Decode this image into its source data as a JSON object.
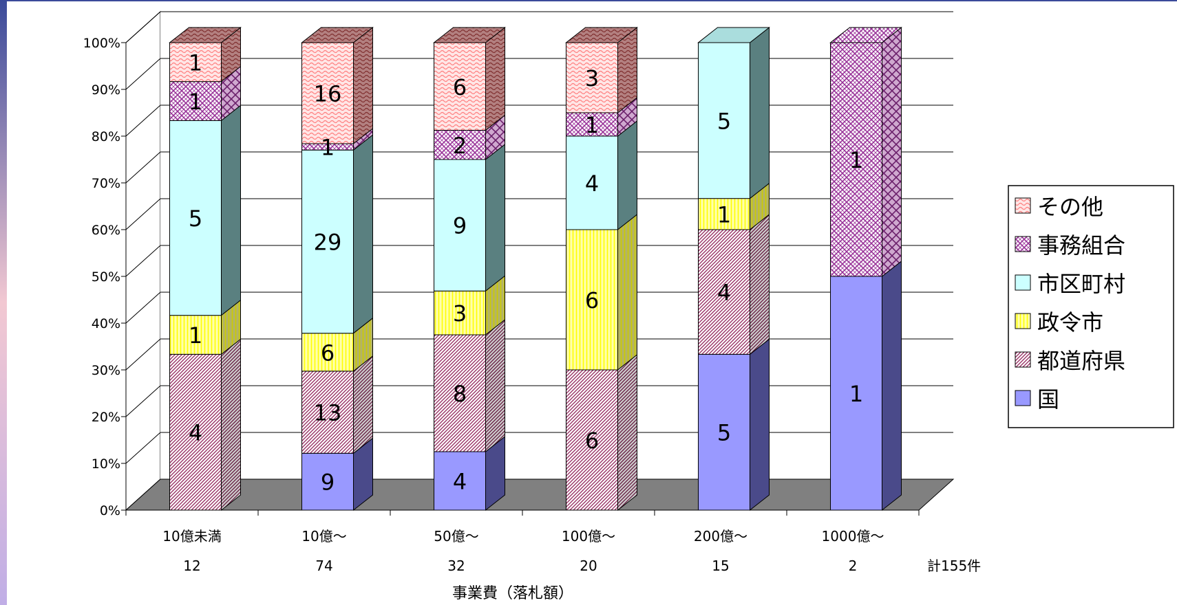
{
  "chart_data": {
    "type": "bar",
    "stacked": true,
    "percent": true,
    "three_d": true,
    "categories": [
      "10億未満",
      "10億～",
      "50億～",
      "100億～",
      "200億～",
      "1000億～"
    ],
    "category_counts": [
      "12",
      "74",
      "32",
      "20",
      "15",
      "2"
    ],
    "total_label": "計155件",
    "xlabel": "事業費（落札額）",
    "ylabel": "",
    "ylim": [
      0,
      100
    ],
    "y_ticks": [
      "0%",
      "10%",
      "20%",
      "30%",
      "40%",
      "50%",
      "60%",
      "70%",
      "80%",
      "90%",
      "100%"
    ],
    "grid": true,
    "legend_position": "right",
    "series": [
      {
        "name": "国",
        "values": [
          0,
          9,
          4,
          0,
          5,
          1
        ],
        "color": "#9999ff",
        "pattern": "solid"
      },
      {
        "name": "都道府県",
        "values": [
          4,
          13,
          8,
          6,
          4,
          0
        ],
        "color": "#993366",
        "pattern": "diag"
      },
      {
        "name": "政令市",
        "values": [
          1,
          6,
          3,
          6,
          1,
          0
        ],
        "color": "#ffff99",
        "pattern": "vert"
      },
      {
        "name": "市区町村",
        "values": [
          5,
          29,
          9,
          4,
          5,
          0
        ],
        "color": "#ccffff",
        "pattern": "solid"
      },
      {
        "name": "事務組合",
        "values": [
          1,
          1,
          2,
          1,
          0,
          1
        ],
        "color": "#993399",
        "pattern": "cross"
      },
      {
        "name": "その他",
        "values": [
          1,
          16,
          6,
          3,
          0,
          0
        ],
        "color": "#ff8080",
        "pattern": "wave"
      }
    ]
  }
}
